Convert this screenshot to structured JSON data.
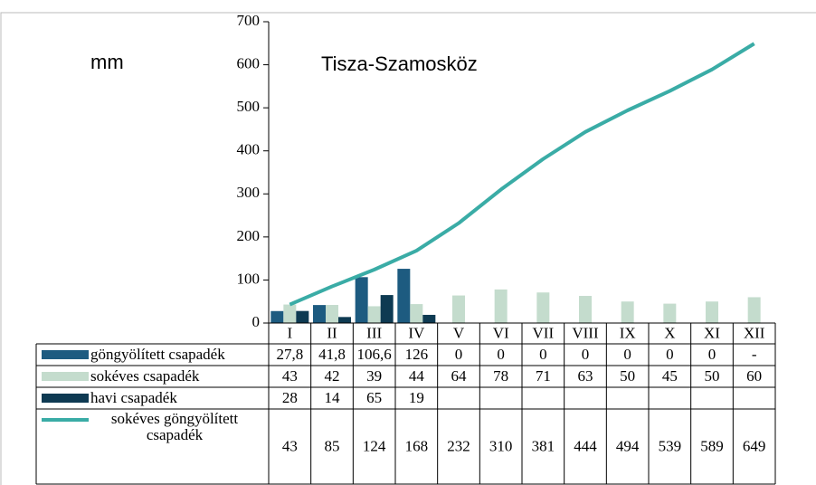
{
  "chart_data": {
    "type": "bar-line-table",
    "title": "Tisza-Szamosköz",
    "y_label": "mm",
    "categories": [
      "I",
      "II",
      "III",
      "IV",
      "V",
      "VI",
      "VII",
      "VIII",
      "IX",
      "X",
      "XI",
      "XII"
    ],
    "series": [
      {
        "name": "göngyölített csapadék",
        "type": "bar",
        "color": "#1d5b80",
        "values": [
          27.8,
          41.8,
          106.6,
          126,
          0,
          0,
          0,
          0,
          0,
          0,
          0,
          null
        ],
        "value_labels": [
          "27,8",
          "41,8",
          "106,6",
          "126",
          "0",
          "0",
          "0",
          "0",
          "0",
          "0",
          "0",
          "-"
        ]
      },
      {
        "name": "sokéves csapadék",
        "type": "bar",
        "color": "#c4dccd",
        "values": [
          43,
          42,
          39,
          44,
          64,
          78,
          71,
          63,
          50,
          45,
          50,
          60
        ]
      },
      {
        "name": "havi csapadék",
        "type": "bar",
        "color": "#0e3a52",
        "values": [
          28,
          14,
          65,
          19,
          null,
          null,
          null,
          null,
          null,
          null,
          null,
          null
        ]
      },
      {
        "name": "sokéves göngyölített csapadék",
        "type": "line",
        "color": "#3aaca6",
        "values": [
          43,
          85,
          124,
          168,
          232,
          310,
          381,
          444,
          494,
          539,
          589,
          649
        ]
      }
    ],
    "ylim": [
      0,
      700
    ],
    "yticks": [
      0,
      100,
      200,
      300,
      400,
      500,
      600,
      700
    ],
    "grid": false
  }
}
